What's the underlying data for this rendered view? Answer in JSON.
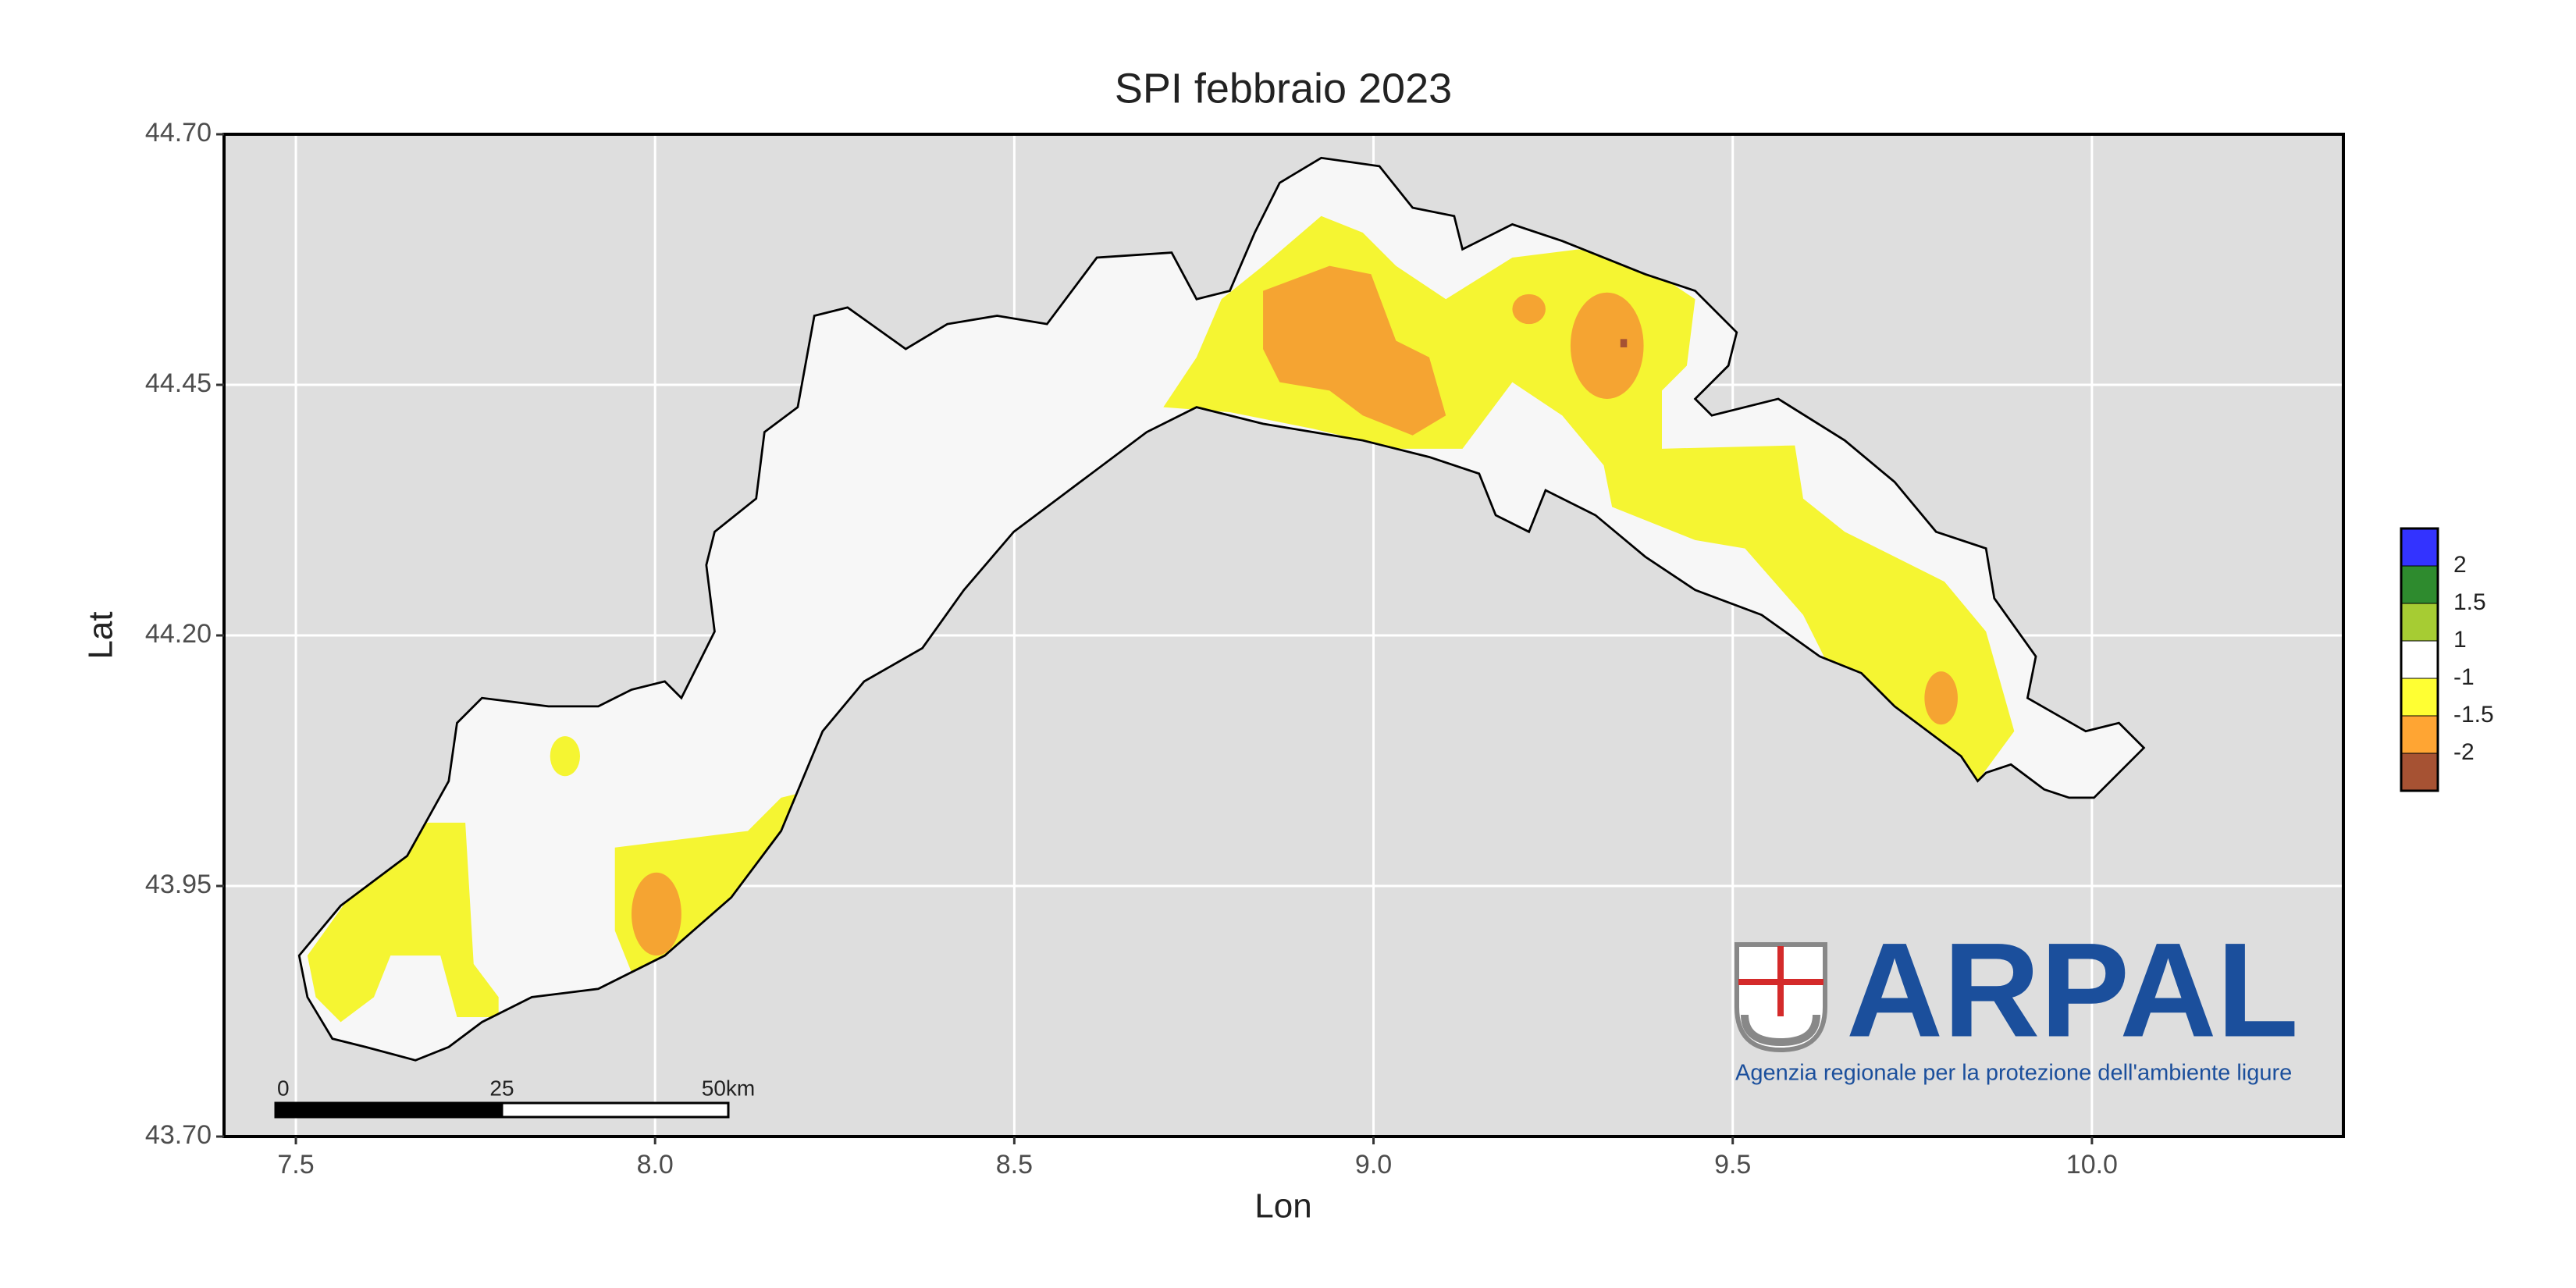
{
  "chart_data": {
    "type": "map",
    "title": "SPI febbraio 2023",
    "xlabel": "Lon",
    "ylabel": "Lat",
    "xlim": [
      7.4,
      10.35
    ],
    "ylim": [
      43.7,
      44.7
    ],
    "xticks": [
      7.5,
      {
        "value": 8,
        "label": "8.0"
      },
      8.5,
      {
        "value": 9,
        "label": "9.0"
      },
      9.5,
      {
        "value": 10,
        "label": "10.0"
      }
    ],
    "yticks": [
      {
        "value": 43.7,
        "label": "43.70"
      },
      43.95,
      {
        "value": 44.2,
        "label": "44.20"
      },
      44.45,
      {
        "value": 44.7,
        "label": "44.70"
      }
    ],
    "grid": true,
    "legend": {
      "colors": [
        "#3333ff",
        "#2e8b2e",
        "#a6cc33",
        "#ffffff",
        "#ffff33",
        "#ffa533",
        "#a65233"
      ],
      "breaks": [
        2,
        1.5,
        1,
        -1,
        -1.5,
        -2
      ]
    },
    "scale_bar": {
      "labels": [
        "0",
        "25",
        "50km"
      ]
    },
    "logo": {
      "name": "ARPAL",
      "tagline": "Agenzia regionale per la protezione dell'ambiente ligure"
    }
  }
}
